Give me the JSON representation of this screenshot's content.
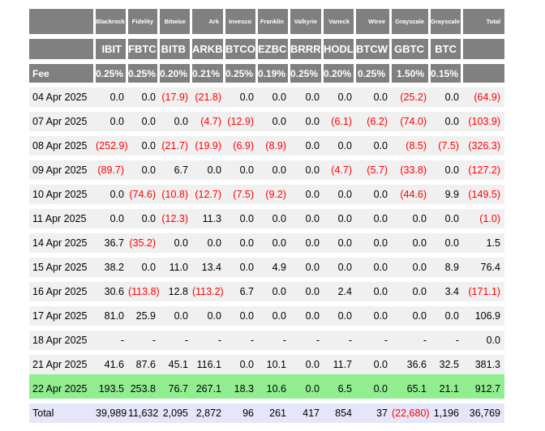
{
  "colors": {
    "header_bg": "#808080",
    "header_text": "#ffffff",
    "row_bg": "#f0f0f0",
    "highlight_row_bg": "#90ee90",
    "total_row_bg": "#e6e6fa",
    "negative_text": "#ff0000"
  },
  "table": {
    "companies": [
      "Blackrock",
      "Fidelity",
      "Bitwise",
      "Ark",
      "Invesco",
      "Franklin",
      "Valkyrie",
      "Vaneck",
      "Wtree",
      "Grayscale",
      "Grayscale"
    ],
    "tickers": [
      "IBIT",
      "FBTC",
      "BITB",
      "ARKB",
      "BTCO",
      "EZBC",
      "BRRR",
      "HODL",
      "BTCW",
      "GBTC",
      "BTC"
    ],
    "fee_label": "Fee",
    "fees": [
      "0.25%",
      "0.25%",
      "0.20%",
      "0.21%",
      "0.25%",
      "0.19%",
      "0.25%",
      "0.20%",
      "0.25%",
      "1.50%",
      "0.15%"
    ],
    "total_label": "Total",
    "rows": [
      {
        "date": "04 Apr 2025",
        "values": [
          "0.0",
          "0.0",
          "(17.9)",
          "(21.8)",
          "0.0",
          "0.0",
          "0.0",
          "0.0",
          "0.0",
          "(25.2)",
          "0.0"
        ],
        "total": "(64.9)",
        "highlight": false
      },
      {
        "date": "07 Apr 2025",
        "values": [
          "0.0",
          "0.0",
          "0.0",
          "(4.7)",
          "(12.9)",
          "0.0",
          "0.0",
          "(6.1)",
          "(6.2)",
          "(74.0)",
          "0.0"
        ],
        "total": "(103.9)",
        "highlight": false
      },
      {
        "date": "08 Apr 2025",
        "values": [
          "(252.9)",
          "0.0",
          "(21.7)",
          "(19.9)",
          "(6.9)",
          "(8.9)",
          "0.0",
          "0.0",
          "0.0",
          "(8.5)",
          "(7.5)"
        ],
        "total": "(326.3)",
        "highlight": false
      },
      {
        "date": "09 Apr 2025",
        "values": [
          "(89.7)",
          "0.0",
          "6.7",
          "0.0",
          "0.0",
          "0.0",
          "0.0",
          "(4.7)",
          "(5.7)",
          "(33.8)",
          "0.0"
        ],
        "total": "(127.2)",
        "highlight": false
      },
      {
        "date": "10 Apr 2025",
        "values": [
          "0.0",
          "(74.6)",
          "(10.8)",
          "(12.7)",
          "(7.5)",
          "(9.2)",
          "0.0",
          "0.0",
          "0.0",
          "(44.6)",
          "9.9"
        ],
        "total": "(149.5)",
        "highlight": false
      },
      {
        "date": "11 Apr 2025",
        "values": [
          "0.0",
          "0.0",
          "(12.3)",
          "11.3",
          "0.0",
          "0.0",
          "0.0",
          "0.0",
          "0.0",
          "0.0",
          "0.0"
        ],
        "total": "(1.0)",
        "highlight": false
      },
      {
        "date": "14 Apr 2025",
        "values": [
          "36.7",
          "(35.2)",
          "0.0",
          "0.0",
          "0.0",
          "0.0",
          "0.0",
          "0.0",
          "0.0",
          "0.0",
          "0.0"
        ],
        "total": "1.5",
        "highlight": false
      },
      {
        "date": "15 Apr 2025",
        "values": [
          "38.2",
          "0.0",
          "11.0",
          "13.4",
          "0.0",
          "4.9",
          "0.0",
          "0.0",
          "0.0",
          "0.0",
          "8.9"
        ],
        "total": "76.4",
        "highlight": false
      },
      {
        "date": "16 Apr 2025",
        "values": [
          "30.6",
          "(113.8)",
          "12.8",
          "(113.2)",
          "6.7",
          "0.0",
          "0.0",
          "2.4",
          "0.0",
          "0.0",
          "3.4"
        ],
        "total": "(171.1)",
        "highlight": false
      },
      {
        "date": "17 Apr 2025",
        "values": [
          "81.0",
          "25.9",
          "0.0",
          "0.0",
          "0.0",
          "0.0",
          "0.0",
          "0.0",
          "0.0",
          "0.0",
          "0.0"
        ],
        "total": "106.9",
        "highlight": false
      },
      {
        "date": "18 Apr 2025",
        "values": [
          "-",
          "-",
          "-",
          "-",
          "-",
          "-",
          "-",
          "-",
          "-",
          "-",
          "-"
        ],
        "total": "0.0",
        "highlight": false
      },
      {
        "date": "21 Apr 2025",
        "values": [
          "41.6",
          "87.6",
          "45.1",
          "116.1",
          "0.0",
          "10.1",
          "0.0",
          "11.7",
          "0.0",
          "36.6",
          "32.5"
        ],
        "total": "381.3",
        "highlight": false
      },
      {
        "date": "22 Apr 2025",
        "values": [
          "193.5",
          "253.8",
          "76.7",
          "267.1",
          "18.3",
          "10.6",
          "0.0",
          "6.5",
          "0.0",
          "65.1",
          "21.1"
        ],
        "total": "912.7",
        "highlight": true
      }
    ],
    "total_row": {
      "label": "Total",
      "values": [
        "39,989",
        "11,632",
        "2,095",
        "2,872",
        "96",
        "261",
        "417",
        "854",
        "37",
        "(22,680)",
        "1,196"
      ],
      "total": "36,769"
    }
  }
}
